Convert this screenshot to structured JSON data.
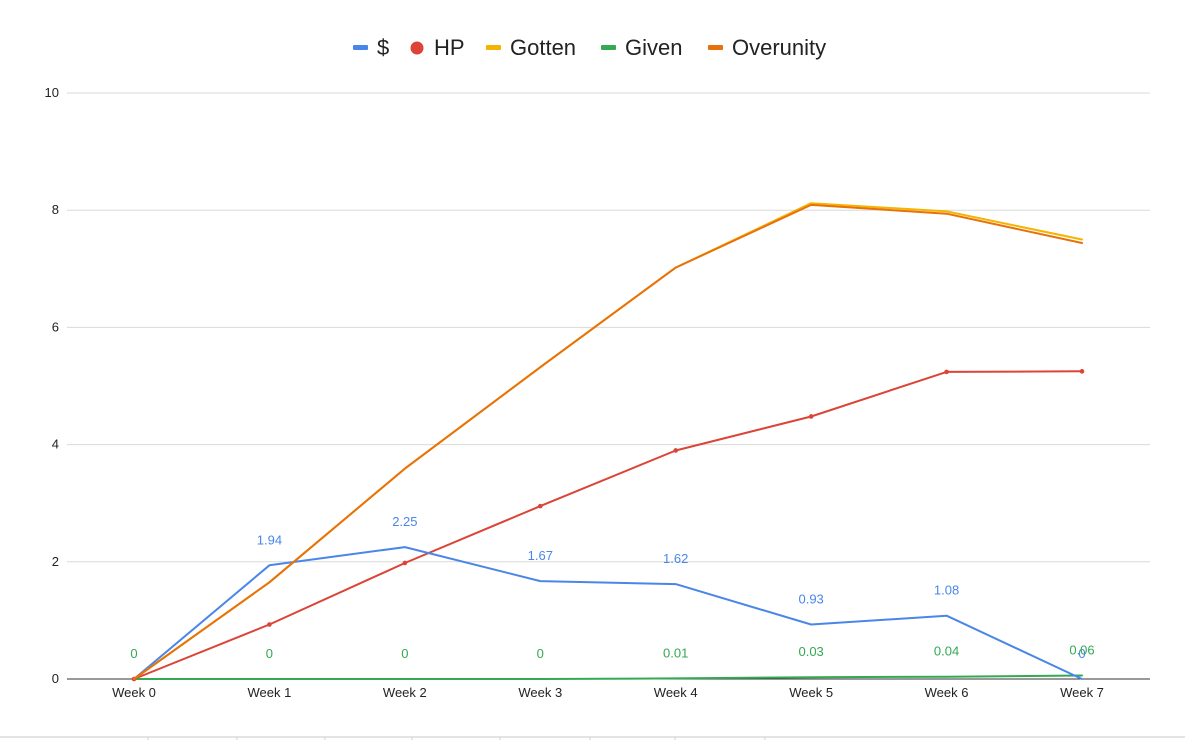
{
  "chart_data": {
    "type": "line",
    "categories": [
      "Week 0",
      "Week 1",
      "Week 2",
      "Week 3",
      "Week 4",
      "Week 5",
      "Week 6",
      "Week 7"
    ],
    "ylim": [
      0,
      10
    ],
    "yticks": [
      "0",
      "2",
      "4",
      "6",
      "8",
      "10"
    ],
    "grid": true,
    "legend_position": "top",
    "series": [
      {
        "name": "$",
        "color": "#4a86e8",
        "marker": "none",
        "values": [
          0,
          1.94,
          2.25,
          1.67,
          1.62,
          0.93,
          1.08,
          0
        ],
        "data_labels": [
          "",
          "1.94",
          "2.25",
          "1.67",
          "1.62",
          "0.93",
          "1.08",
          "0"
        ]
      },
      {
        "name": "HP",
        "color": "#db4437",
        "marker": "circle",
        "values": [
          0,
          0.93,
          1.98,
          2.95,
          3.9,
          4.48,
          5.24,
          5.25
        ],
        "data_labels": []
      },
      {
        "name": "Gotten",
        "color": "#f4b400",
        "marker": "none",
        "values": [
          0,
          1.65,
          3.59,
          5.32,
          7.02,
          8.12,
          7.98,
          7.5
        ],
        "data_labels": []
      },
      {
        "name": "Given",
        "color": "#34a853",
        "marker": "none",
        "values": [
          0,
          0,
          0,
          0,
          0.01,
          0.03,
          0.04,
          0.06
        ],
        "data_labels": [
          "0",
          "0",
          "0",
          "0",
          "0.01",
          "0.03",
          "0.04",
          "0.06"
        ]
      },
      {
        "name": "Overunity",
        "color": "#e8710a",
        "marker": "none",
        "values": [
          0,
          1.65,
          3.59,
          5.32,
          7.02,
          8.09,
          7.94,
          7.44
        ],
        "data_labels": []
      }
    ],
    "title": "",
    "xlabel": "",
    "ylabel": ""
  }
}
